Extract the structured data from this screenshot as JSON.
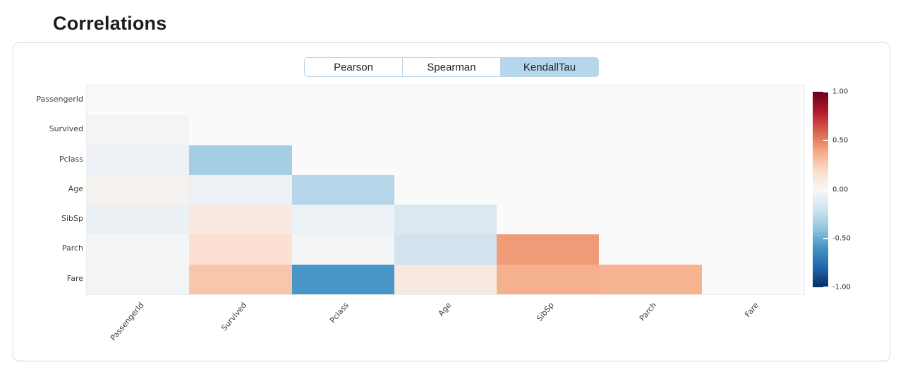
{
  "page": {
    "title": "Correlations"
  },
  "tabs": [
    {
      "label": "Pearson",
      "active": false
    },
    {
      "label": "Spearman",
      "active": false
    },
    {
      "label": "KendallTau",
      "active": true
    }
  ],
  "colors": {
    "tab_border": "#bcd8eb",
    "tab_active_bg": "#b6d6ea",
    "plot_background": "#fafafa",
    "colorbar_max": "#67001f",
    "colorbar_mid": "#f7f7f7",
    "colorbar_min": "#053061"
  },
  "chart_data": {
    "type": "heatmap",
    "title": "Correlations",
    "method": "KendallTau",
    "shape": "lower-triangle-without-diagonal",
    "variables": [
      "PassengerId",
      "Survived",
      "Pclass",
      "Age",
      "SibSp",
      "Parch",
      "Fare"
    ],
    "cells": [
      {
        "row": "Survived",
        "col": "PassengerId",
        "value": -0.01,
        "color": "#f4f4f5"
      },
      {
        "row": "Pclass",
        "col": "PassengerId",
        "value": -0.04,
        "color": "#eef2f6"
      },
      {
        "row": "Pclass",
        "col": "Survived",
        "value": -0.31,
        "color": "#a5cde3"
      },
      {
        "row": "Age",
        "col": "PassengerId",
        "value": 0.03,
        "color": "#f5f1ee"
      },
      {
        "row": "Age",
        "col": "Survived",
        "value": -0.05,
        "color": "#edf1f5"
      },
      {
        "row": "Age",
        "col": "Pclass",
        "value": -0.28,
        "color": "#b4d6e8"
      },
      {
        "row": "SibSp",
        "col": "PassengerId",
        "value": -0.06,
        "color": "#ebf0f4"
      },
      {
        "row": "SibSp",
        "col": "Survived",
        "value": 0.07,
        "color": "#f9e9e2"
      },
      {
        "row": "SibSp",
        "col": "Pclass",
        "value": -0.05,
        "color": "#ecf1f5"
      },
      {
        "row": "SibSp",
        "col": "Age",
        "value": -0.15,
        "color": "#dbe8f0"
      },
      {
        "row": "Parch",
        "col": "PassengerId",
        "value": -0.02,
        "color": "#f4f5f6"
      },
      {
        "row": "Parch",
        "col": "Survived",
        "value": 0.15,
        "color": "#fce0d2"
      },
      {
        "row": "Parch",
        "col": "Pclass",
        "value": -0.02,
        "color": "#f2f4f5"
      },
      {
        "row": "Parch",
        "col": "Age",
        "value": -0.19,
        "color": "#d2e3ee"
      },
      {
        "row": "Parch",
        "col": "SibSp",
        "value": 0.45,
        "color": "#ef9b77"
      },
      {
        "row": "Fare",
        "col": "PassengerId",
        "value": -0.03,
        "color": "#f2f4f6"
      },
      {
        "row": "Fare",
        "col": "Survived",
        "value": 0.3,
        "color": "#f8c7ab"
      },
      {
        "row": "Fare",
        "col": "Pclass",
        "value": -0.6,
        "color": "#4997c9"
      },
      {
        "row": "Fare",
        "col": "Age",
        "value": 0.08,
        "color": "#f7e8e1"
      },
      {
        "row": "Fare",
        "col": "SibSp",
        "value": 0.38,
        "color": "#f5b18e"
      },
      {
        "row": "Fare",
        "col": "Parch",
        "value": 0.37,
        "color": "#f7b491"
      }
    ],
    "colorbar": {
      "colormap": "RdBu_r",
      "range": [
        -1,
        1
      ],
      "ticks": [
        {
          "label": "1.00",
          "pos": 0.0
        },
        {
          "label": "0.50",
          "pos": 0.25
        },
        {
          "label": "0.00",
          "pos": 0.5
        },
        {
          "label": "-0.50",
          "pos": 0.75
        },
        {
          "label": "-1.00",
          "pos": 1.0
        }
      ]
    }
  }
}
